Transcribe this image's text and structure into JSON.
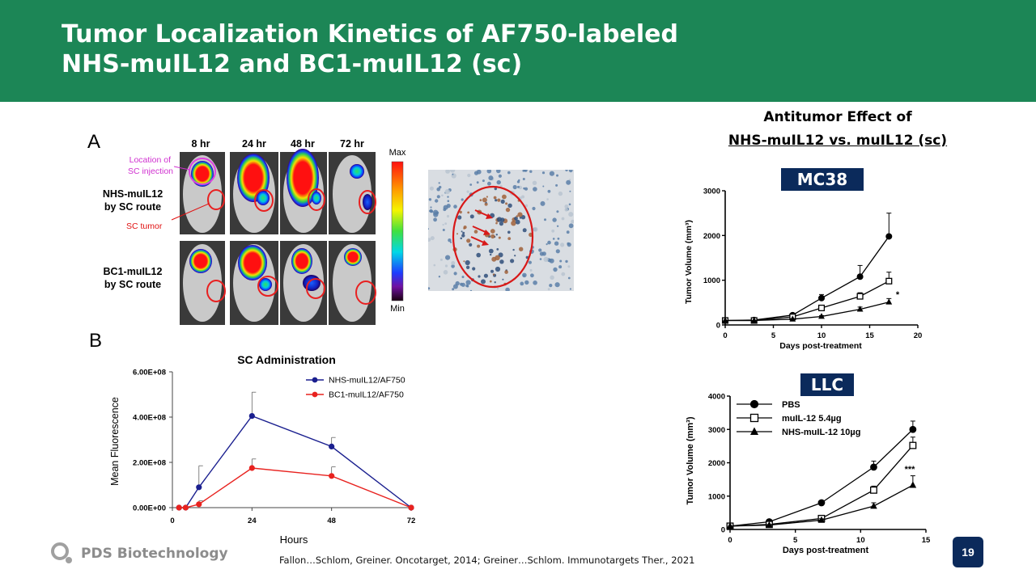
{
  "slide": {
    "title_line1": "Tumor Localization Kinetics of AF750-labeled",
    "title_line2": "NHS-muIL12 and BC1-muIL12 (sc)",
    "page_number": "19",
    "citation": "Fallon…Schlom, Greiner. Oncotarget, 2014; Greiner…Schlom. Immunotargets Ther., 2021",
    "logo_text": "PDS Biotechnology",
    "colors": {
      "header": "#1c8656",
      "badge": "#0b2a5b"
    }
  },
  "panel_a": {
    "letter": "A",
    "time_labels": [
      "8 hr",
      "24 hr",
      "48 hr",
      "72 hr"
    ],
    "row1_label_line1": "NHS-muIL12",
    "row1_label_line2": "by SC route",
    "row2_label_line1": "BC1-muIL12",
    "row2_label_line2": "by SC route",
    "annotation_injection_line1": "Location of",
    "annotation_injection_line2": "SC injection",
    "annotation_tumor": "SC tumor",
    "scale_max": "Max",
    "scale_min": "Min"
  },
  "panel_b": {
    "letter": "B"
  },
  "right": {
    "heading_line1": "Antitumor Effect of",
    "heading_line2": "NHS-muIL12 vs. muIL12 (sc)",
    "badge_mc38": "MC38",
    "badge_llc": "LLC"
  },
  "chart_data": [
    {
      "type": "line",
      "title": "SC Administration",
      "xlabel": "Hours",
      "ylabel": "Mean Fluorescence",
      "x_ticks": [
        "0",
        "24",
        "48",
        "72"
      ],
      "y_ticks": [
        "0.00E+00",
        "2.00E+08",
        "4.00E+08",
        "6.00E+08"
      ],
      "xlim": [
        0,
        72
      ],
      "ylim": [
        0,
        600000000
      ],
      "legend": "top-right",
      "series": [
        {
          "name": "NHS-muIL12/AF750",
          "color": "#1a1f8f",
          "x": [
            2,
            4,
            8,
            24,
            48,
            72
          ],
          "y": [
            0,
            0,
            90000000,
            405000000,
            270000000,
            0
          ],
          "err": [
            0,
            0,
            95000000,
            105000000,
            40000000,
            0
          ]
        },
        {
          "name": "BC1-muIL12/AF750",
          "color": "#e8221f",
          "x": [
            2,
            4,
            8,
            24,
            48,
            72
          ],
          "y": [
            0,
            0,
            15000000,
            175000000,
            140000000,
            0
          ],
          "err": [
            0,
            0,
            15000000,
            40000000,
            40000000,
            0
          ]
        }
      ]
    },
    {
      "type": "line",
      "xlabel": "Days post-treatment",
      "ylabel": "Tumor Volume (mm³)",
      "x_ticks": [
        "0",
        "5",
        "10",
        "15",
        "20"
      ],
      "y_ticks": [
        "0",
        "1000",
        "2000",
        "3000"
      ],
      "xlim": [
        0,
        20
      ],
      "ylim": [
        0,
        3000
      ],
      "series": [
        {
          "marker": "circle",
          "x": [
            0,
            3,
            7,
            10,
            14,
            17
          ],
          "y": [
            100,
            110,
            220,
            600,
            1080,
            1980
          ],
          "err": [
            0,
            0,
            30,
            80,
            250,
            520
          ]
        },
        {
          "marker": "square",
          "x": [
            0,
            3,
            7,
            10,
            14,
            17
          ],
          "y": [
            100,
            100,
            180,
            380,
            640,
            980
          ],
          "err": [
            0,
            0,
            20,
            60,
            80,
            200
          ]
        },
        {
          "marker": "triangle",
          "x": [
            0,
            3,
            7,
            10,
            14,
            17
          ],
          "y": [
            100,
            100,
            130,
            190,
            350,
            510
          ],
          "err": [
            0,
            0,
            10,
            20,
            50,
            80
          ]
        }
      ],
      "annotations": [
        "*"
      ]
    },
    {
      "type": "line",
      "xlabel": "Days post-treatment",
      "ylabel": "Tumor Volume (mm³)",
      "x_ticks": [
        "0",
        "5",
        "10",
        "15"
      ],
      "y_ticks": [
        "0",
        "1000",
        "2000",
        "3000",
        "4000"
      ],
      "xlim": [
        0,
        15
      ],
      "ylim": [
        0,
        4000
      ],
      "legend": "top-left",
      "series": [
        {
          "name": "PBS",
          "marker": "circle",
          "x": [
            0,
            3,
            7,
            11,
            14
          ],
          "y": [
            100,
            230,
            800,
            1870,
            3000
          ],
          "err": [
            0,
            30,
            60,
            180,
            250
          ]
        },
        {
          "name": "muIL-12 5.4µg",
          "marker": "square",
          "x": [
            0,
            3,
            7,
            11,
            14
          ],
          "y": [
            100,
            150,
            330,
            1180,
            2520
          ],
          "err": [
            0,
            20,
            50,
            120,
            250
          ]
        },
        {
          "name": "NHS-muIL-12 10µg",
          "marker": "triangle",
          "x": [
            0,
            3,
            7,
            11,
            14
          ],
          "y": [
            100,
            130,
            280,
            700,
            1330
          ],
          "err": [
            0,
            20,
            40,
            100,
            280
          ]
        }
      ],
      "annotations": [
        "***"
      ]
    }
  ]
}
